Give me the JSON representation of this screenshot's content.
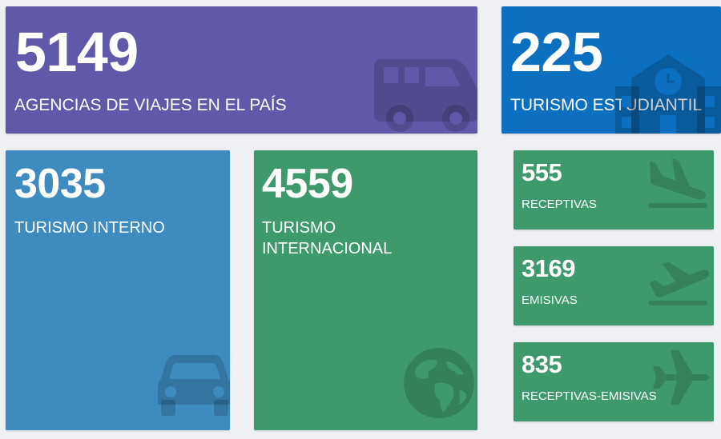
{
  "cards": [
    {
      "value": "5149",
      "label": "AGENCIAS DE VIAJES EN EL PAÍS",
      "icon": "bus-icon",
      "color": "#6059a9"
    },
    {
      "value": "225",
      "label": "TURISMO ESTUDIANTIL",
      "icon": "school-icon",
      "color": "#0d6fbf"
    },
    {
      "value": "3035",
      "label": "TURISMO INTERNO",
      "icon": "car-icon",
      "color": "#3d8bbf"
    },
    {
      "value": "4559",
      "label": "TURISMO INTERNACIONAL",
      "icon": "globe-icon",
      "color": "#3e9a6d"
    },
    {
      "value": "555",
      "label": "RECEPTIVAS",
      "icon": "plane-arrival-icon",
      "color": "#3e9a6d"
    },
    {
      "value": "3169",
      "label": "EMISIVAS",
      "icon": "plane-departure-icon",
      "color": "#3e9a6d"
    },
    {
      "value": "835",
      "label": "RECEPTIVAS-EMISIVAS",
      "icon": "plane-icon",
      "color": "#3e9a6d"
    }
  ]
}
